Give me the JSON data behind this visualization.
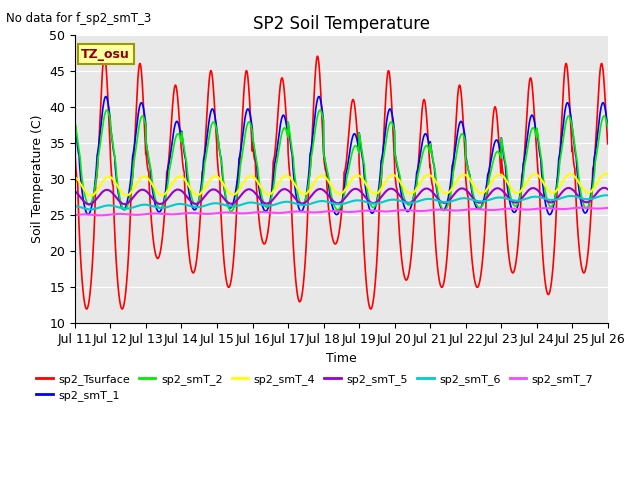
{
  "title": "SP2 Soil Temperature",
  "ylabel": "Soil Temperature (C)",
  "xlabel": "Time",
  "note": "No data for f_sp2_smT_3",
  "tz_label": "TZ_osu",
  "ylim": [
    10,
    50
  ],
  "num_days": 15,
  "points_per_day": 144,
  "series": {
    "sp2_Tsurface": {
      "color": "#FF0000",
      "lw": 1.2
    },
    "sp2_smT_1": {
      "color": "#0000FF",
      "lw": 1.2
    },
    "sp2_smT_2": {
      "color": "#00EE00",
      "lw": 1.2
    },
    "sp2_smT_4": {
      "color": "#FFFF00",
      "lw": 1.5
    },
    "sp2_smT_5": {
      "color": "#9900CC",
      "lw": 1.5
    },
    "sp2_smT_6": {
      "color": "#00CCCC",
      "lw": 1.5
    },
    "sp2_smT_7": {
      "color": "#FF44FF",
      "lw": 1.5
    }
  },
  "legend_order": [
    "sp2_Tsurface",
    "sp2_smT_1",
    "sp2_smT_2",
    "sp2_smT_4",
    "sp2_smT_5",
    "sp2_smT_6",
    "sp2_smT_7"
  ],
  "tick_days": [
    11,
    12,
    13,
    14,
    15,
    16,
    17,
    18,
    19,
    20,
    21,
    22,
    23,
    24,
    25,
    26
  ],
  "background_color": "#E8E8E8",
  "figure_bg": "#FFFFFF"
}
